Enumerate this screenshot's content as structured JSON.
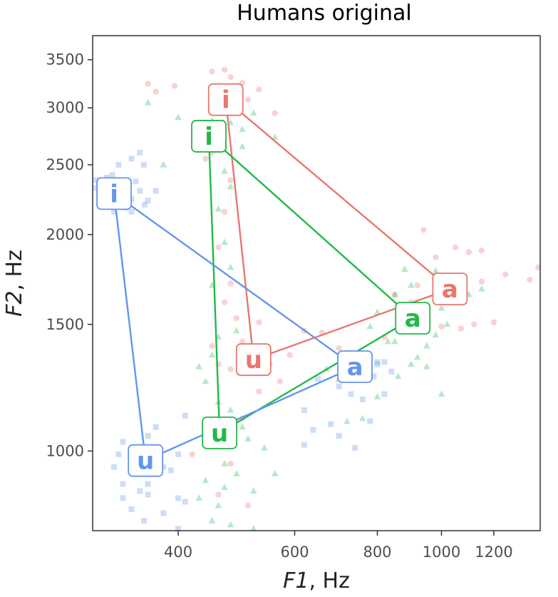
{
  "chart_data": {
    "type": "scatter",
    "title": "Humans original",
    "xlabel": {
      "var": "F1",
      "unit": ", Hz"
    },
    "ylabel": {
      "var": "F2",
      "unit": ", Hz"
    },
    "x_scale": "log",
    "y_scale": "log",
    "xlim": [
      297,
      1410
    ],
    "ylim": [
      775,
      3780
    ],
    "x_ticks": [
      400,
      600,
      800,
      1000,
      1200
    ],
    "x_tick_labels": [
      "400",
      "600",
      "800",
      "1000",
      "1200"
    ],
    "y_ticks": [
      1000,
      1500,
      2000,
      2500,
      3000,
      3500
    ],
    "y_tick_labels": [
      "1000",
      "1500",
      "2000",
      "2500",
      "3000",
      "3500"
    ],
    "grid": false,
    "legend": "none",
    "series": [
      {
        "color": "#e8776f",
        "marker": "circle",
        "vowels": [
          {
            "label": "i",
            "x": 472,
            "y": 3080
          },
          {
            "label": "u",
            "x": 520,
            "y": 1340
          },
          {
            "label": "a",
            "x": 1030,
            "y": 1680
          }
        ],
        "triangle": [
          "i",
          "a",
          "u"
        ],
        "points": [
          [
            360,
            3240
          ],
          [
            395,
            3220
          ],
          [
            370,
            3160
          ],
          [
            450,
            3370
          ],
          [
            470,
            3390
          ],
          [
            480,
            3310
          ],
          [
            500,
            3250
          ],
          [
            530,
            3180
          ],
          [
            510,
            3080
          ],
          [
            560,
            2950
          ],
          [
            470,
            2650
          ],
          [
            450,
            2600
          ],
          [
            480,
            2380
          ],
          [
            440,
            2550
          ],
          [
            470,
            2150
          ],
          [
            460,
            1920
          ],
          [
            480,
            1710
          ],
          [
            470,
            1610
          ],
          [
            490,
            1530
          ],
          [
            450,
            1400
          ],
          [
            460,
            1320
          ],
          [
            480,
            1300
          ],
          [
            500,
            1420
          ],
          [
            530,
            1510
          ],
          [
            550,
            1320
          ],
          [
            570,
            1250
          ],
          [
            590,
            1360
          ],
          [
            620,
            1470
          ],
          [
            660,
            1460
          ],
          [
            700,
            1390
          ],
          [
            940,
            2030
          ],
          [
            1050,
            1920
          ],
          [
            980,
            1860
          ],
          [
            1100,
            1890
          ],
          [
            1150,
            1900
          ],
          [
            1250,
            1760
          ],
          [
            1400,
            1800
          ],
          [
            1150,
            1720
          ],
          [
            1080,
            1610
          ],
          [
            900,
            1610
          ],
          [
            850,
            1650
          ],
          [
            1120,
            1500
          ],
          [
            1070,
            1480
          ],
          [
            1200,
            1510
          ],
          [
            1000,
            1490
          ],
          [
            920,
            1700
          ],
          [
            880,
            1560
          ],
          [
            1360,
            1730
          ],
          [
            820,
            1440
          ],
          [
            420,
            990
          ],
          [
            460,
            870
          ],
          [
            510,
            840
          ],
          [
            440,
            1060
          ],
          [
            500,
            1110
          ],
          [
            530,
            1210
          ],
          [
            480,
            960
          ]
        ]
      },
      {
        "color": "#23b84a",
        "marker": "triangle",
        "vowels": [
          {
            "label": "i",
            "x": 445,
            "y": 2740
          },
          {
            "label": "u",
            "x": 462,
            "y": 1060
          },
          {
            "label": "a",
            "x": 905,
            "y": 1530
          }
        ],
        "triangle": [
          "i",
          "a",
          "u"
        ],
        "points": [
          [
            360,
            3050
          ],
          [
            400,
            2910
          ],
          [
            450,
            2880
          ],
          [
            480,
            2860
          ],
          [
            500,
            2800
          ],
          [
            520,
            2950
          ],
          [
            560,
            2730
          ],
          [
            500,
            2650
          ],
          [
            380,
            2500
          ],
          [
            470,
            2450
          ],
          [
            480,
            2330
          ],
          [
            460,
            2170
          ],
          [
            470,
            1950
          ],
          [
            480,
            1800
          ],
          [
            450,
            1700
          ],
          [
            490,
            1470
          ],
          [
            460,
            1440
          ],
          [
            450,
            1360
          ],
          [
            430,
            1310
          ],
          [
            440,
            1250
          ],
          [
            460,
            1170
          ],
          [
            440,
            1090
          ],
          [
            450,
            1020
          ],
          [
            480,
            1140
          ],
          [
            500,
            1080
          ],
          [
            510,
            1040
          ],
          [
            540,
            1010
          ],
          [
            560,
            930
          ],
          [
            490,
            930
          ],
          [
            470,
            890
          ],
          [
            440,
            910
          ],
          [
            460,
            840
          ],
          [
            450,
            800
          ],
          [
            480,
            790
          ],
          [
            520,
            780
          ],
          [
            520,
            880
          ],
          [
            430,
            860
          ],
          [
            470,
            960
          ],
          [
            800,
            1190
          ],
          [
            760,
            1110
          ],
          [
            720,
            1100
          ],
          [
            860,
            1270
          ],
          [
            900,
            1320
          ],
          [
            950,
            1400
          ],
          [
            850,
            1420
          ],
          [
            880,
            1500
          ],
          [
            800,
            1560
          ],
          [
            780,
            1490
          ],
          [
            850,
            1650
          ],
          [
            900,
            1700
          ],
          [
            1000,
            1580
          ],
          [
            1050,
            1680
          ],
          [
            1100,
            1650
          ],
          [
            1150,
            1680
          ],
          [
            950,
            1310
          ],
          [
            1000,
            1200
          ],
          [
            1020,
            1500
          ],
          [
            980,
            1450
          ],
          [
            920,
            1350
          ],
          [
            980,
            1780
          ],
          [
            880,
            1790
          ],
          [
            830,
            1420
          ],
          [
            700,
            1260
          ],
          [
            670,
            1300
          ]
        ]
      },
      {
        "color": "#6495ed",
        "marker": "square",
        "vowels": [
          {
            "label": "i",
            "x": 320,
            "y": 2280
          },
          {
            "label": "u",
            "x": 357,
            "y": 970
          },
          {
            "label": "a",
            "x": 740,
            "y": 1310
          }
        ],
        "triangle": [
          "i",
          "a",
          "u"
        ],
        "points": [
          [
            300,
            2380
          ],
          [
            306,
            2350
          ],
          [
            304,
            2300
          ],
          [
            312,
            2400
          ],
          [
            318,
            2420
          ],
          [
            308,
            2250
          ],
          [
            315,
            2200
          ],
          [
            320,
            2150
          ],
          [
            332,
            2180
          ],
          [
            340,
            2240
          ],
          [
            350,
            2300
          ],
          [
            356,
            2200
          ],
          [
            345,
            2370
          ],
          [
            355,
            2500
          ],
          [
            325,
            2500
          ],
          [
            340,
            2550
          ],
          [
            350,
            2600
          ],
          [
            300,
            2320
          ],
          [
            312,
            2280
          ],
          [
            330,
            2220
          ],
          [
            370,
            2300
          ],
          [
            360,
            2230
          ],
          [
            340,
            2150
          ],
          [
            320,
            2350
          ],
          [
            370,
            930
          ],
          [
            360,
            900
          ],
          [
            350,
            880
          ],
          [
            330,
            860
          ],
          [
            320,
            950
          ],
          [
            340,
            830
          ],
          [
            355,
            800
          ],
          [
            345,
            970
          ],
          [
            330,
            1030
          ],
          [
            325,
            990
          ],
          [
            360,
            870
          ],
          [
            380,
            820
          ],
          [
            390,
            940
          ],
          [
            400,
            990
          ],
          [
            360,
            1050
          ],
          [
            370,
            1080
          ],
          [
            380,
            950
          ],
          [
            400,
            860
          ],
          [
            410,
            850
          ],
          [
            410,
            1120
          ],
          [
            350,
            1010
          ],
          [
            400,
            780
          ],
          [
            330,
            900
          ],
          [
            700,
            1050
          ],
          [
            760,
            1180
          ],
          [
            790,
            1270
          ],
          [
            800,
            1330
          ],
          [
            820,
            1200
          ],
          [
            780,
            1100
          ],
          [
            820,
            1330
          ],
          [
            840,
            1290
          ],
          [
            800,
            1320
          ],
          [
            640,
            1070
          ],
          [
            620,
            1140
          ],
          [
            740,
            1010
          ],
          [
            620,
            1020
          ],
          [
            650,
            1260
          ],
          [
            680,
            1090
          ],
          [
            700,
            1230
          ],
          [
            730,
            1200
          ]
        ]
      }
    ]
  }
}
